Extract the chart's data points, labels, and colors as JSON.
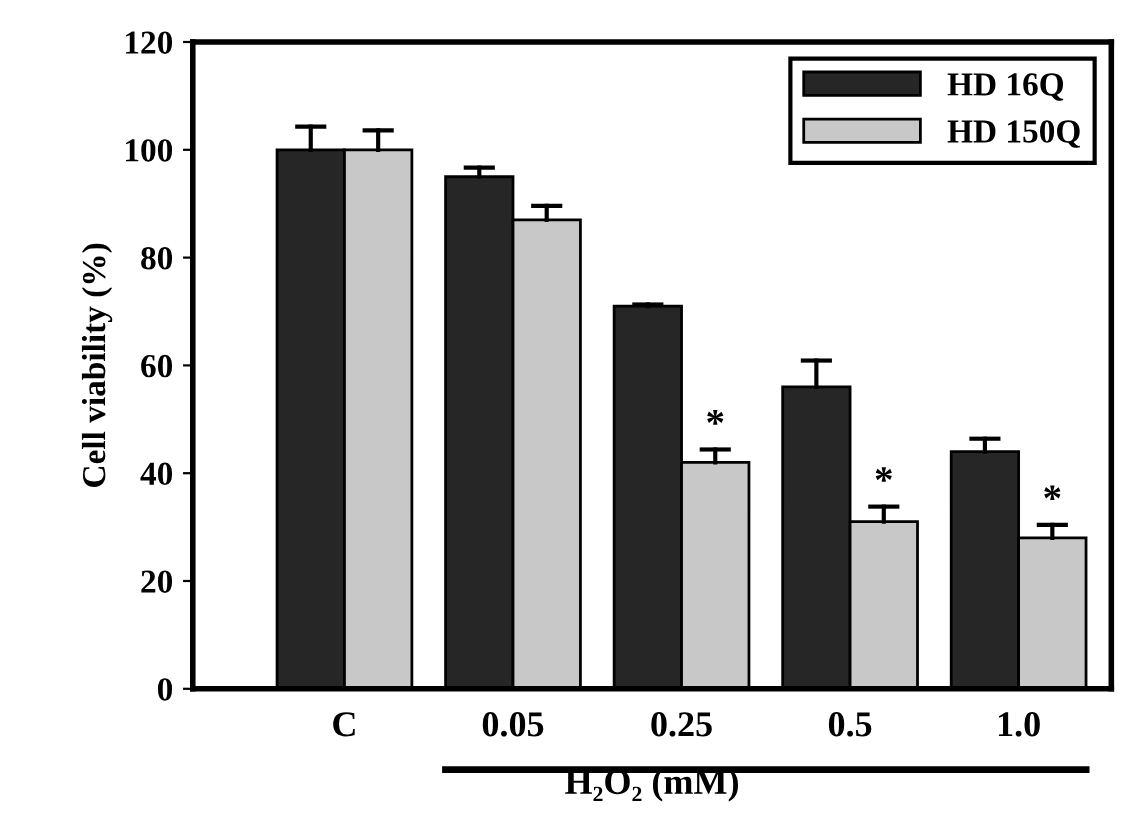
{
  "chart_data": {
    "type": "bar",
    "xlabel": "H₂O₂ (mM)",
    "ylabel": "Cell viability (%)",
    "categories": [
      "C",
      "0.05",
      "0.25",
      "0.5",
      "1.0"
    ],
    "series": [
      {
        "name": "HD 16Q",
        "color": "#262626",
        "values": [
          100,
          95,
          71,
          56,
          44
        ],
        "errors": [
          [
            100,
            104.3
          ],
          [
            95,
            96.7
          ],
          [
            71,
            71.3
          ],
          [
            56,
            60.9
          ],
          [
            44,
            46.4
          ]
        ]
      },
      {
        "name": "HD 150Q",
        "color": "#c8c8c8",
        "values": [
          100,
          87,
          42,
          31,
          28
        ],
        "errors": [
          [
            100,
            103.6
          ],
          [
            87,
            89.6
          ],
          [
            42,
            44.4
          ],
          [
            31,
            33.8
          ],
          [
            28,
            30.4
          ]
        ]
      }
    ],
    "annotations": [
      {
        "text": "*",
        "x": "0.25",
        "y": 44.4
      },
      {
        "text": "*",
        "x": "0.5",
        "y": 33.8
      },
      {
        "text": "*",
        "x": "1.0",
        "y": 30.4
      }
    ],
    "ylim": [
      0,
      120
    ],
    "yticks": [
      0,
      20,
      40,
      60,
      80,
      100,
      120
    ],
    "grid": false,
    "legend": "top right"
  }
}
